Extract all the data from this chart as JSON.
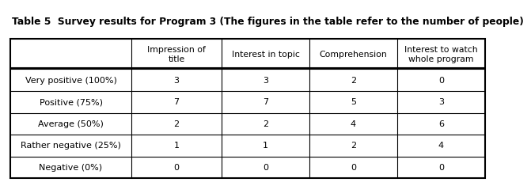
{
  "title": "Table 5  Survey results for Program 3 (The figures in the table refer to the number of people)",
  "col_headers": [
    "Impression of\ntitle",
    "Interest in topic",
    "Comprehension",
    "Interest to watch\nwhole program"
  ],
  "row_headers": [
    "Very positive (100%)",
    "Positive (75%)",
    "Average (50%)",
    "Rather negative (25%)",
    "Negative (0%)"
  ],
  "data": [
    [
      "3",
      "3",
      "2",
      "0"
    ],
    [
      "7",
      "7",
      "5",
      "3"
    ],
    [
      "2",
      "2",
      "4",
      "6"
    ],
    [
      "1",
      "1",
      "2",
      "4"
    ],
    [
      "0",
      "0",
      "0",
      "0"
    ]
  ],
  "bg_color": "#ffffff",
  "title_fontsize": 8.8,
  "header_fontsize": 7.8,
  "cell_fontsize": 8.0,
  "font_family": "DejaVu Sans"
}
